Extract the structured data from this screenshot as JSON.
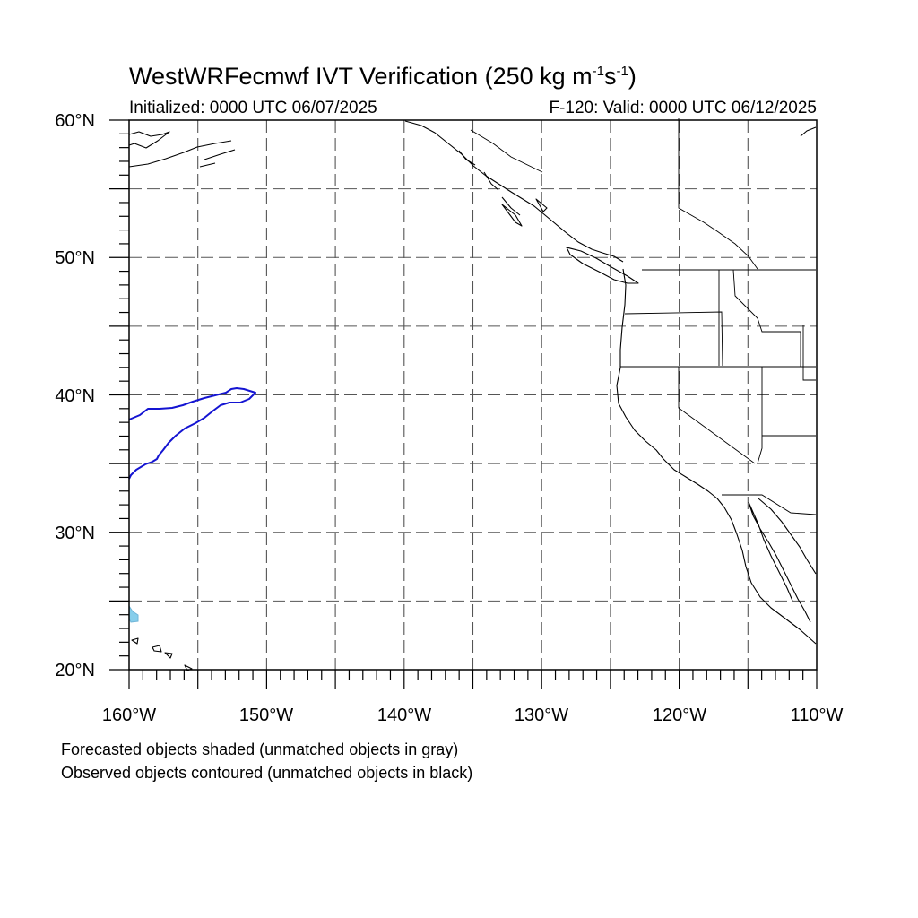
{
  "title": {
    "prefix": "WestWRFecmwf IVT Verification (250 kg m",
    "exp1": "-1",
    "mid": "s",
    "exp2": "-1",
    "suffix": ")"
  },
  "initialized": "Initialized: 0000 UTC 06/07/2025",
  "valid": "F-120: Valid: 0000 UTC 06/12/2025",
  "map": {
    "lon_range": [
      -160,
      -110
    ],
    "lat_range": [
      20,
      60
    ],
    "lat_labels": [
      "60°N",
      "50°N",
      "40°N",
      "30°N",
      "20°N"
    ],
    "lon_labels": [
      "160°W",
      "150°W",
      "140°W",
      "130°W",
      "120°W",
      "110°W"
    ],
    "grid": "dashed every 5 degrees",
    "observed_contour_color": "#1414d2",
    "forecast_shade_color": "#87ceeb",
    "coastline_color": "#000000"
  },
  "notes": {
    "forecast": "Forecasted objects shaded (unmatched objects in gray)",
    "observed": "Observed objects contoured (unmatched objects in black)"
  }
}
